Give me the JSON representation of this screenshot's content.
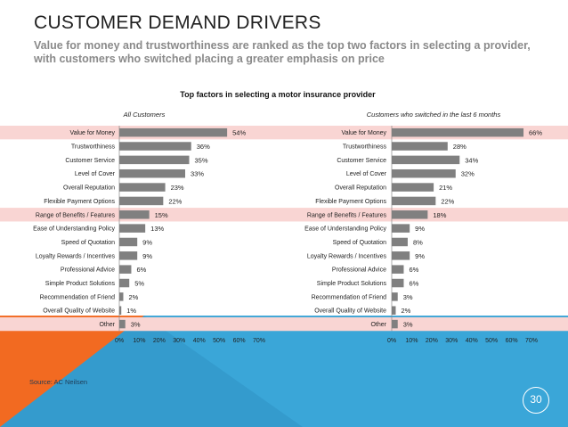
{
  "slide": {
    "title": "CUSTOMER DEMAND DRIVERS",
    "subtitle": "Value for money and trustworthiness are ranked as the top two factors in selecting a provider, with customers who switched placing a greater emphasis on price",
    "source": "Source: AC Neilsen",
    "page_number": "30",
    "colors": {
      "bar": "#808080",
      "highlight_band": "#f9d5d3",
      "blue_background": "#3aa6d8",
      "orange_triangle": "#f26a21",
      "title_text": "#222222",
      "subtitle_text": "#8a8a8a"
    }
  },
  "chart_data": {
    "type": "bar",
    "orientation": "horizontal",
    "title": "Top factors in selecting a motor insurance provider",
    "categories": [
      "Value for Money",
      "Trustworthiness",
      "Customer Service",
      "Level of Cover",
      "Overall Reputation",
      "Flexible Payment Options",
      "Range of Benefits / Features",
      "Ease of Understanding Policy",
      "Speed of Quotation",
      "Loyalty Rewards / Incentives",
      "Professional Advice",
      "Simple Product Solutions",
      "Recommendation of Friend",
      "Overall Quality of Website",
      "Other"
    ],
    "highlighted_categories": [
      "Value for Money",
      "Range of Benefits / Features",
      "Other"
    ],
    "xlim": [
      0,
      70
    ],
    "x_ticks": [
      "0%",
      "10%",
      "20%",
      "30%",
      "40%",
      "50%",
      "60%",
      "70%"
    ],
    "value_suffix": "%",
    "panels": [
      {
        "name": "All Customers",
        "values": [
          54,
          36,
          35,
          33,
          23,
          22,
          15,
          13,
          9,
          9,
          6,
          5,
          2,
          1,
          3
        ]
      },
      {
        "name": "Customers who switched in the last 6 months",
        "values": [
          66,
          28,
          34,
          32,
          21,
          22,
          18,
          9,
          8,
          9,
          6,
          6,
          3,
          2,
          3
        ]
      }
    ]
  }
}
